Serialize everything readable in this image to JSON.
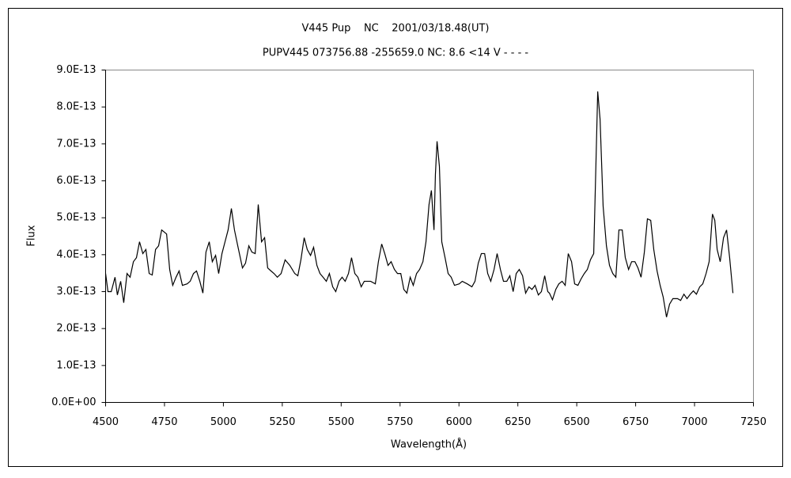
{
  "chart_data": {
    "type": "line",
    "title": "V445 Pup    NC    2001/03/18.48(UT)",
    "subtitle": "PUPV445 073756.88 -255659.0 NC: 8.6 <14 V - - - -",
    "x_label": "Wavelength(Å)",
    "y_label": "Flux",
    "color": "#000000",
    "grid": false,
    "xlim": [
      4500,
      7250
    ],
    "xticks": [
      4500,
      4750,
      5000,
      5250,
      5500,
      5750,
      6000,
      6250,
      6500,
      6750,
      7000,
      7250
    ],
    "ylim": [
      0,
      9e-13
    ],
    "yticks": [
      {
        "value": 0,
        "label": "0.0E+00"
      },
      {
        "value": 1e-13,
        "label": "1.0E-13"
      },
      {
        "value": 2e-13,
        "label": "2.0E-13"
      },
      {
        "value": 3e-13,
        "label": "3.0E-13"
      },
      {
        "value": 4e-13,
        "label": "4.0E-13"
      },
      {
        "value": 5e-13,
        "label": "5.0E-13"
      },
      {
        "value": 6e-13,
        "label": "6.0E-13"
      },
      {
        "value": 7e-13,
        "label": "7.0E-13"
      },
      {
        "value": 8e-13,
        "label": "8.0E-13"
      },
      {
        "value": 9e-13,
        "label": "9.0E-13"
      }
    ],
    "x": [
      4500,
      4510,
      4524,
      4540,
      4550,
      4564,
      4577,
      4591,
      4604,
      4618,
      4631,
      4644,
      4658,
      4671,
      4685,
      4698,
      4712,
      4725,
      4738,
      4759,
      4772,
      4785,
      4799,
      4812,
      4826,
      4846,
      4859,
      4873,
      4886,
      4900,
      4913,
      4926,
      4940,
      4953,
      4967,
      4980,
      4994,
      5007,
      5020,
      5034,
      5047,
      5061,
      5081,
      5094,
      5108,
      5121,
      5135,
      5148,
      5162,
      5175,
      5188,
      5202,
      5215,
      5229,
      5245,
      5262,
      5282,
      5303,
      5316,
      5329,
      5343,
      5356,
      5370,
      5383,
      5397,
      5410,
      5423,
      5437,
      5450,
      5464,
      5477,
      5491,
      5504,
      5517,
      5531,
      5544,
      5558,
      5571,
      5585,
      5598,
      5611,
      5625,
      5645,
      5658,
      5672,
      5685,
      5699,
      5712,
      5726,
      5739,
      5753,
      5766,
      5779,
      5793,
      5806,
      5820,
      5833,
      5847,
      5860,
      5873,
      5883,
      5894,
      5900,
      5907,
      5917,
      5927,
      5941,
      5954,
      5967,
      5981,
      6001,
      6014,
      6035,
      6055,
      6068,
      6082,
      6095,
      6109,
      6122,
      6135,
      6149,
      6162,
      6176,
      6189,
      6203,
      6216,
      6230,
      6243,
      6256,
      6270,
      6283,
      6297,
      6310,
      6323,
      6337,
      6350,
      6364,
      6377,
      6384,
      6397,
      6411,
      6424,
      6438,
      6451,
      6464,
      6478,
      6491,
      6505,
      6518,
      6532,
      6545,
      6558,
      6572,
      6582,
      6589,
      6599,
      6612,
      6626,
      6639,
      6653,
      6666,
      6679,
      6693,
      6706,
      6720,
      6733,
      6747,
      6760,
      6773,
      6787,
      6800,
      6814,
      6827,
      6841,
      6854,
      6867,
      6881,
      6894,
      6908,
      6928,
      6941,
      6955,
      6968,
      6982,
      6995,
      7008,
      7022,
      7035,
      7049,
      7062,
      7076,
      7086,
      7096,
      7109,
      7123,
      7136,
      7149,
      7163
    ],
    "values": [
      3.49e-13,
      3e-13,
      3e-13,
      3.39e-13,
      2.91e-13,
      3.28e-13,
      2.7e-13,
      3.49e-13,
      3.39e-13,
      3.81e-13,
      3.92e-13,
      4.35e-13,
      4.03e-13,
      4.14e-13,
      3.49e-13,
      3.45e-13,
      4.14e-13,
      4.24e-13,
      4.67e-13,
      4.56e-13,
      3.6e-13,
      3.17e-13,
      3.39e-13,
      3.56e-13,
      3.17e-13,
      3.21e-13,
      3.28e-13,
      3.49e-13,
      3.56e-13,
      3.28e-13,
      2.96e-13,
      4.07e-13,
      4.35e-13,
      3.81e-13,
      3.98e-13,
      3.49e-13,
      4.03e-13,
      4.35e-13,
      4.67e-13,
      5.25e-13,
      4.67e-13,
      4.24e-13,
      3.64e-13,
      3.77e-13,
      4.24e-13,
      4.07e-13,
      4.03e-13,
      5.36e-13,
      4.35e-13,
      4.46e-13,
      3.64e-13,
      3.56e-13,
      3.49e-13,
      3.39e-13,
      3.49e-13,
      3.86e-13,
      3.71e-13,
      3.49e-13,
      3.43e-13,
      3.86e-13,
      4.46e-13,
      4.14e-13,
      3.98e-13,
      4.2e-13,
      3.71e-13,
      3.49e-13,
      3.39e-13,
      3.28e-13,
      3.49e-13,
      3.13e-13,
      3e-13,
      3.28e-13,
      3.39e-13,
      3.28e-13,
      3.49e-13,
      3.92e-13,
      3.49e-13,
      3.39e-13,
      3.13e-13,
      3.28e-13,
      3.28e-13,
      3.28e-13,
      3.21e-13,
      3.81e-13,
      4.29e-13,
      4.03e-13,
      3.71e-13,
      3.81e-13,
      3.6e-13,
      3.49e-13,
      3.49e-13,
      3.06e-13,
      2.96e-13,
      3.39e-13,
      3.17e-13,
      3.49e-13,
      3.6e-13,
      3.81e-13,
      4.35e-13,
      5.36e-13,
      5.74e-13,
      4.67e-13,
      6.17e-13,
      7.07e-13,
      6.39e-13,
      4.35e-13,
      3.92e-13,
      3.49e-13,
      3.39e-13,
      3.17e-13,
      3.21e-13,
      3.28e-13,
      3.21e-13,
      3.13e-13,
      3.28e-13,
      3.77e-13,
      4.03e-13,
      4.03e-13,
      3.49e-13,
      3.28e-13,
      3.6e-13,
      4.03e-13,
      3.6e-13,
      3.28e-13,
      3.28e-13,
      3.43e-13,
      3e-13,
      3.49e-13,
      3.6e-13,
      3.43e-13,
      2.96e-13,
      3.13e-13,
      3.06e-13,
      3.17e-13,
      2.91e-13,
      3e-13,
      3.43e-13,
      3e-13,
      2.96e-13,
      2.78e-13,
      3.06e-13,
      3.21e-13,
      3.28e-13,
      3.17e-13,
      4.03e-13,
      3.81e-13,
      3.21e-13,
      3.17e-13,
      3.34e-13,
      3.49e-13,
      3.6e-13,
      3.86e-13,
      4.03e-13,
      6.6e-13,
      8.42e-13,
      7.67e-13,
      5.31e-13,
      4.24e-13,
      3.71e-13,
      3.49e-13,
      3.39e-13,
      4.67e-13,
      4.67e-13,
      3.92e-13,
      3.6e-13,
      3.81e-13,
      3.81e-13,
      3.64e-13,
      3.39e-13,
      4.07e-13,
      4.97e-13,
      4.93e-13,
      4.14e-13,
      3.56e-13,
      3.17e-13,
      2.85e-13,
      2.31e-13,
      2.66e-13,
      2.81e-13,
      2.81e-13,
      2.76e-13,
      2.93e-13,
      2.81e-13,
      2.93e-13,
      3.02e-13,
      2.93e-13,
      3.13e-13,
      3.21e-13,
      3.49e-13,
      3.81e-13,
      5.1e-13,
      4.93e-13,
      4.14e-13,
      3.81e-13,
      4.46e-13,
      4.67e-13,
      3.92e-13,
      2.96e-13
    ]
  }
}
